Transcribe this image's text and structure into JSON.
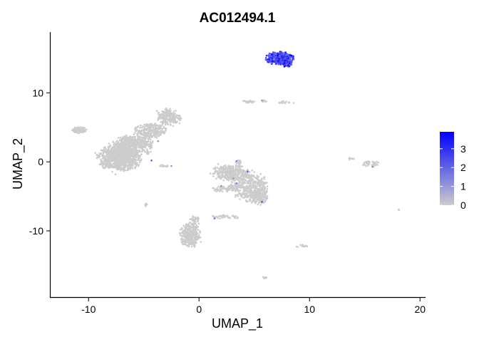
{
  "chart_data": {
    "type": "scatter",
    "title": "AC012494.1",
    "xlabel": "UMAP_1",
    "ylabel": "UMAP_2",
    "xlim": [
      -13.5,
      20.5
    ],
    "ylim": [
      -19.7,
      18.8
    ],
    "x_ticks": [
      -10,
      0,
      10,
      20
    ],
    "x_tick_labels": [
      "-10",
      "0",
      "10",
      "20"
    ],
    "y_ticks": [
      -10,
      0,
      10
    ],
    "y_tick_labels": [
      "-10",
      "0",
      "10"
    ],
    "grid": false,
    "legend": {
      "position": "right",
      "type": "colorbar",
      "ticks": [
        0,
        1,
        2,
        3
      ],
      "tick_labels": [
        "0",
        "1",
        "2",
        "3"
      ],
      "range": [
        0,
        3.9
      ],
      "low_color": "#cccccc",
      "high_color": "#0000ff"
    },
    "point_color_low": "#cccccc",
    "point_color_high": "#0000ff",
    "clusters": [
      {
        "shape": "blob",
        "cx": -10.8,
        "cy": 4.6,
        "rx": 0.7,
        "ry": 0.5,
        "n": 80,
        "expr": 0
      },
      {
        "shape": "blob",
        "cx": -7.2,
        "cy": 0.6,
        "rx": 2.1,
        "ry": 2.0,
        "n": 900,
        "expr": 0
      },
      {
        "shape": "blob",
        "cx": -6.0,
        "cy": 2.6,
        "rx": 1.9,
        "ry": 1.3,
        "n": 420,
        "expr": 0
      },
      {
        "shape": "blob",
        "cx": -4.4,
        "cy": 4.5,
        "rx": 1.5,
        "ry": 1.2,
        "n": 260,
        "expr": 0
      },
      {
        "shape": "blob",
        "cx": -2.7,
        "cy": 6.5,
        "rx": 1.1,
        "ry": 1.4,
        "n": 200,
        "expr": 0
      },
      {
        "shape": "blob",
        "cx": -3.2,
        "cy": -0.6,
        "rx": 0.5,
        "ry": 0.2,
        "n": 14,
        "expr": 0
      },
      {
        "shape": "blob",
        "cx": -4.6,
        "cy": 1.4,
        "rx": 0.4,
        "ry": 0.3,
        "n": 14,
        "expr": 0
      },
      {
        "shape": "blob",
        "cx": 2.8,
        "cy": -1.6,
        "rx": 1.8,
        "ry": 1.2,
        "n": 320,
        "expr": 0
      },
      {
        "shape": "blob",
        "cx": 4.6,
        "cy": -3.6,
        "rx": 1.8,
        "ry": 2.2,
        "n": 420,
        "expr": 0
      },
      {
        "shape": "blob",
        "cx": 5.4,
        "cy": -5.2,
        "rx": 0.9,
        "ry": 1.1,
        "n": 120,
        "expr": 0
      },
      {
        "shape": "blob",
        "cx": 2.4,
        "cy": -3.9,
        "rx": 1.3,
        "ry": 0.5,
        "n": 60,
        "expr": 0
      },
      {
        "shape": "blob",
        "cx": 3.6,
        "cy": -0.3,
        "rx": 0.4,
        "ry": 0.6,
        "n": 25,
        "expr": 0
      },
      {
        "shape": "blob",
        "cx": 2.4,
        "cy": -8.0,
        "rx": 1.4,
        "ry": 0.3,
        "n": 40,
        "expr": 0
      },
      {
        "shape": "blob",
        "cx": -0.8,
        "cy": -10.6,
        "rx": 1.0,
        "ry": 1.9,
        "n": 340,
        "expr": 0
      },
      {
        "shape": "blob",
        "cx": -0.4,
        "cy": -8.4,
        "rx": 0.5,
        "ry": 0.6,
        "n": 40,
        "expr": 0
      },
      {
        "shape": "blob",
        "cx": -4.8,
        "cy": -6.2,
        "rx": 0.15,
        "ry": 0.3,
        "n": 6,
        "expr": 0
      },
      {
        "shape": "blob",
        "cx": 4.4,
        "cy": 8.7,
        "rx": 0.7,
        "ry": 0.2,
        "n": 22,
        "expr": 0
      },
      {
        "shape": "blob",
        "cx": 7.8,
        "cy": 8.6,
        "rx": 0.6,
        "ry": 0.2,
        "n": 16,
        "expr": 0
      },
      {
        "shape": "blob",
        "cx": 5.9,
        "cy": 8.8,
        "rx": 0.3,
        "ry": 0.2,
        "n": 8,
        "expr": 0
      },
      {
        "shape": "blob",
        "cx": 13.8,
        "cy": 0.5,
        "rx": 0.3,
        "ry": 0.2,
        "n": 10,
        "expr": 0
      },
      {
        "shape": "blob",
        "cx": 15.6,
        "cy": -0.3,
        "rx": 0.9,
        "ry": 0.5,
        "n": 40,
        "expr": 0
      },
      {
        "shape": "blob",
        "cx": 9.4,
        "cy": -12.2,
        "rx": 0.6,
        "ry": 0.3,
        "n": 14,
        "expr": 0
      },
      {
        "shape": "blob",
        "cx": 5.9,
        "cy": -16.8,
        "rx": 0.3,
        "ry": 0.2,
        "n": 8,
        "expr": 0
      },
      {
        "shape": "blob",
        "cx": 18.1,
        "cy": -6.9,
        "rx": 0.1,
        "ry": 0.1,
        "n": 3,
        "expr": 0
      },
      {
        "shape": "blob",
        "cx": 7.3,
        "cy": 15.0,
        "rx": 1.3,
        "ry": 1.0,
        "n": 380,
        "expr": 2.6
      },
      {
        "shape": "blob",
        "cx": 8.0,
        "cy": 14.3,
        "rx": 0.5,
        "ry": 0.6,
        "n": 90,
        "expr": 2.8
      }
    ],
    "highlighted_points": [
      {
        "x": -4.3,
        "y": 0.2,
        "expr": 2.2
      },
      {
        "x": -2.5,
        "y": -0.6,
        "expr": 1.2
      },
      {
        "x": -3.7,
        "y": 3.0,
        "expr": 1.0
      },
      {
        "x": 3.4,
        "y": 0.1,
        "expr": 1.5
      },
      {
        "x": 4.4,
        "y": -1.4,
        "expr": 2.0
      },
      {
        "x": 3.4,
        "y": -3.1,
        "expr": 1.4
      },
      {
        "x": 2.0,
        "y": -3.5,
        "expr": 1.2
      },
      {
        "x": 5.7,
        "y": -5.8,
        "expr": 2.4
      },
      {
        "x": 1.4,
        "y": -8.2,
        "expr": 1.8
      },
      {
        "x": 5.7,
        "y": 8.9,
        "expr": 1.1
      },
      {
        "x": 15.7,
        "y": -0.7,
        "expr": 1.3
      },
      {
        "x": 3.1,
        "y": -2.4,
        "expr": 1.1
      }
    ]
  }
}
